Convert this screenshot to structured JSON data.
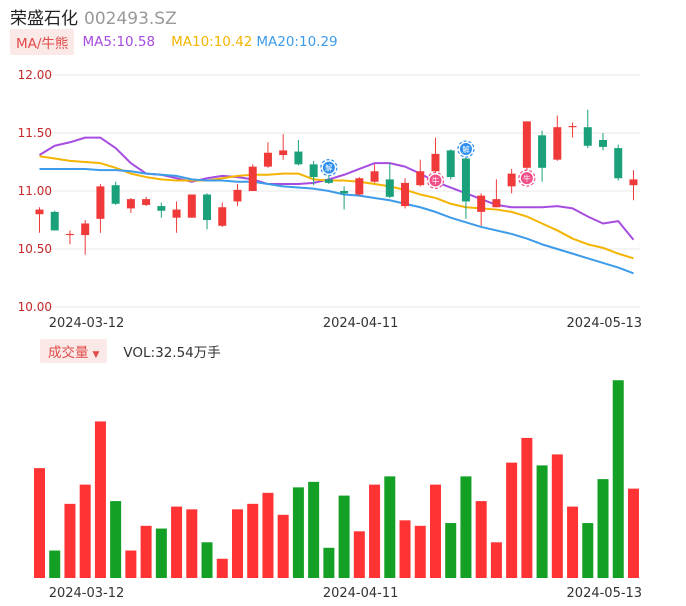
{
  "header": {
    "name": "荣盛石化",
    "code": "002493.SZ"
  },
  "indicator_bar": {
    "button_label": "MA/牛熊",
    "ma5": "MA5:10.58",
    "ma10": "MA10:10.42",
    "ma20": "MA20:10.29"
  },
  "volume_bar": {
    "button_label": "成交量",
    "value": "VOL:32.54万手"
  },
  "colors": {
    "up": "#f03a3a",
    "down": "#1aa07a",
    "vol_up": "#ff3333",
    "vol_down": "#13a024",
    "ma5": "#a64ce0",
    "ma10": "#f5b400",
    "ma20": "#3d9be9",
    "grid": "#e8e8e8",
    "axis_text": "#c62828"
  },
  "chart_data": [
    {
      "type": "candlestick",
      "title": "",
      "y_ticks": [
        "12.00",
        "11.50",
        "11.00",
        "10.50",
        "10.00"
      ],
      "ylim": [
        10.0,
        12.0
      ],
      "x_ticks": [
        {
          "index": 0,
          "label": "2024-03-12"
        },
        {
          "index": 18,
          "label": "2024-04-11"
        },
        {
          "index": 34,
          "label": "2024-05-13"
        }
      ],
      "candles": [
        {
          "o": 10.8,
          "h": 10.86,
          "l": 10.64,
          "c": 10.84
        },
        {
          "o": 10.82,
          "h": 10.83,
          "l": 10.67,
          "c": 10.66
        },
        {
          "o": 10.62,
          "h": 10.66,
          "l": 10.54,
          "c": 10.63
        },
        {
          "o": 10.62,
          "h": 10.75,
          "l": 10.45,
          "c": 10.72
        },
        {
          "o": 10.76,
          "h": 11.06,
          "l": 10.64,
          "c": 11.04
        },
        {
          "o": 11.05,
          "h": 11.08,
          "l": 10.88,
          "c": 10.89
        },
        {
          "o": 10.85,
          "h": 10.94,
          "l": 10.81,
          "c": 10.93
        },
        {
          "o": 10.88,
          "h": 10.95,
          "l": 10.87,
          "c": 10.93
        },
        {
          "o": 10.87,
          "h": 10.9,
          "l": 10.77,
          "c": 10.83
        },
        {
          "o": 10.77,
          "h": 10.91,
          "l": 10.64,
          "c": 10.84
        },
        {
          "o": 10.77,
          "h": 10.97,
          "l": 10.77,
          "c": 10.97
        },
        {
          "o": 10.97,
          "h": 10.98,
          "l": 10.67,
          "c": 10.75
        },
        {
          "o": 10.7,
          "h": 10.9,
          "l": 10.69,
          "c": 10.86
        },
        {
          "o": 10.91,
          "h": 11.06,
          "l": 10.87,
          "c": 11.01
        },
        {
          "o": 11.0,
          "h": 11.23,
          "l": 11.0,
          "c": 11.21
        },
        {
          "o": 11.21,
          "h": 11.42,
          "l": 11.2,
          "c": 11.33
        },
        {
          "o": 11.31,
          "h": 11.49,
          "l": 11.27,
          "c": 11.35
        },
        {
          "o": 11.34,
          "h": 11.44,
          "l": 11.22,
          "c": 11.23
        },
        {
          "o": 11.23,
          "h": 11.26,
          "l": 11.05,
          "c": 11.12
        },
        {
          "o": 11.1,
          "h": 11.15,
          "l": 11.06,
          "c": 11.07
        },
        {
          "o": 11.0,
          "h": 11.04,
          "l": 10.84,
          "c": 10.98
        },
        {
          "o": 10.97,
          "h": 11.12,
          "l": 10.96,
          "c": 11.11
        },
        {
          "o": 11.08,
          "h": 11.23,
          "l": 11.07,
          "c": 11.17
        },
        {
          "o": 11.1,
          "h": 11.24,
          "l": 10.94,
          "c": 10.95
        },
        {
          "o": 10.87,
          "h": 11.11,
          "l": 10.85,
          "c": 11.07
        },
        {
          "o": 11.05,
          "h": 11.27,
          "l": 11.04,
          "c": 11.17
        },
        {
          "o": 11.17,
          "h": 11.46,
          "l": 11.16,
          "c": 11.32
        },
        {
          "o": 11.35,
          "h": 11.36,
          "l": 11.1,
          "c": 11.12
        },
        {
          "o": 11.28,
          "h": 11.31,
          "l": 10.76,
          "c": 10.91
        },
        {
          "o": 10.82,
          "h": 10.98,
          "l": 10.7,
          "c": 10.96
        },
        {
          "o": 10.86,
          "h": 11.1,
          "l": 10.86,
          "c": 10.93
        },
        {
          "o": 11.04,
          "h": 11.19,
          "l": 10.98,
          "c": 11.15
        },
        {
          "o": 11.2,
          "h": 11.6,
          "l": 11.18,
          "c": 11.6
        },
        {
          "o": 11.48,
          "h": 11.52,
          "l": 11.08,
          "c": 11.2
        },
        {
          "o": 11.27,
          "h": 11.65,
          "l": 11.26,
          "c": 11.55
        },
        {
          "o": 11.55,
          "h": 11.59,
          "l": 11.46,
          "c": 11.56
        },
        {
          "o": 11.55,
          "h": 11.7,
          "l": 11.37,
          "c": 11.39
        },
        {
          "o": 11.44,
          "h": 11.5,
          "l": 11.35,
          "c": 11.38
        },
        {
          "o": 11.37,
          "h": 11.4,
          "l": 11.09,
          "c": 11.11
        },
        {
          "o": 11.05,
          "h": 11.18,
          "l": 10.92,
          "c": 11.1
        }
      ],
      "ma5": [
        11.31,
        11.39,
        11.42,
        11.46,
        11.46,
        11.37,
        11.24,
        11.15,
        11.14,
        11.11,
        11.08,
        11.11,
        11.13,
        11.12,
        11.1,
        11.06,
        11.06,
        11.06,
        11.07,
        11.1,
        11.14,
        11.19,
        11.24,
        11.24,
        11.21,
        11.15,
        11.08,
        11.03,
        10.98,
        10.93,
        10.88,
        10.86,
        10.86,
        10.86,
        10.87,
        10.85,
        10.78,
        10.72,
        10.74,
        10.58
      ],
      "ma10": [
        11.3,
        11.28,
        11.26,
        11.25,
        11.24,
        11.2,
        11.15,
        11.12,
        11.1,
        11.09,
        11.09,
        11.09,
        11.11,
        11.13,
        11.14,
        11.14,
        11.15,
        11.15,
        11.1,
        11.09,
        11.09,
        11.08,
        11.06,
        11.04,
        11.01,
        10.97,
        10.94,
        10.89,
        10.86,
        10.85,
        10.84,
        10.82,
        10.78,
        10.72,
        10.66,
        10.59,
        10.54,
        10.51,
        10.46,
        10.42
      ],
      "ma20": [
        11.19,
        11.19,
        11.19,
        11.19,
        11.18,
        11.18,
        11.17,
        11.15,
        11.14,
        11.13,
        11.1,
        11.09,
        11.09,
        11.08,
        11.08,
        11.06,
        11.04,
        11.03,
        11.02,
        11.0,
        10.97,
        10.96,
        10.94,
        10.92,
        10.89,
        10.86,
        10.82,
        10.77,
        10.73,
        10.69,
        10.66,
        10.63,
        10.59,
        10.54,
        10.5,
        10.46,
        10.42,
        10.38,
        10.34,
        10.29
      ],
      "markers": [
        {
          "index": 19,
          "text": "解",
          "kind": "blue"
        },
        {
          "index": 26,
          "text": "牛",
          "kind": "red"
        },
        {
          "index": 28,
          "text": "解",
          "kind": "blue"
        },
        {
          "index": 32,
          "text": "牛",
          "kind": "red"
        }
      ]
    },
    {
      "type": "bar",
      "title": "",
      "x_ticks": [
        "2024-03-12",
        "2024-04-11",
        "2024-05-13"
      ],
      "values": [
        40,
        10,
        27,
        34,
        57,
        28,
        10,
        19,
        18,
        26,
        25,
        13,
        7,
        25,
        27,
        31,
        23,
        33,
        35,
        11,
        30,
        17,
        34,
        37,
        21,
        19,
        34,
        20,
        37,
        28,
        13,
        42,
        51,
        41,
        45,
        26,
        20,
        36,
        72,
        32.54
      ],
      "ylim": [
        0,
        75
      ]
    }
  ]
}
